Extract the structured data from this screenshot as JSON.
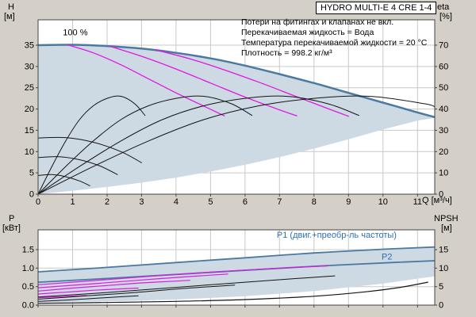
{
  "title": "HYDRO MULTI-E 4 CRE 1-4",
  "info_lines": [
    "Потери на фитингах и клапанах не вкл.",
    "Перекачиваемая жидкость = Вода",
    "Температура перекачиваемой жидкости = 20 °C",
    "Плотность = 998.2 кг/м³"
  ],
  "labels": {
    "h": "H",
    "h_unit": "[м]",
    "eta": "eta",
    "eta_unit": "[%]",
    "p": "P",
    "p_unit": "[кВт]",
    "npsh": "NPSH",
    "npsh_unit": "[м]",
    "q_axis": "Q [м³/ч]"
  },
  "colors": {
    "background": "#d4d0c8",
    "plot_bg": "#ffffff",
    "grid": "#c9c9c9",
    "frame": "#444444",
    "envelope": "#cdd9e3",
    "primary_curve": "#4a7aa2",
    "magenta_curve": "#e019e0",
    "black_curve": "#151515",
    "blue_text": "#2f6fb0",
    "text": "#000000"
  },
  "chart_data": [
    {
      "id": "hq",
      "type": "line",
      "title": "HYDRO MULTI-E 4 CRE 1-4",
      "xlabel": "Q [м³/ч]",
      "ylabel_left": "H [м]",
      "ylabel_right": "eta [%]",
      "xlim": [
        0,
        11.5
      ],
      "ylim_left": [
        0,
        41
      ],
      "ylim_right": [
        0,
        82
      ],
      "grid": true,
      "xticks": {
        "values": [
          0,
          1,
          2,
          3,
          4,
          5,
          6,
          7,
          8,
          9,
          10,
          11
        ],
        "labels": [
          "0",
          "1",
          "2",
          "3",
          "4",
          "5",
          "6",
          "7",
          "8",
          "9",
          "10",
          "11"
        ],
        "show_labels": true
      },
      "yticks_left": {
        "values": [
          0,
          5,
          10,
          15,
          20,
          25,
          30,
          35
        ],
        "labels": [
          "0",
          "5",
          "10",
          "15",
          "20",
          "25",
          "30",
          "35"
        ]
      },
      "yticks_right": {
        "values": [
          0,
          10,
          20,
          30,
          40,
          50,
          60,
          70
        ],
        "labels": [
          "0",
          "10",
          "20",
          "30",
          "40",
          "50",
          "60",
          "70"
        ]
      },
      "annotations": [
        {
          "text": "100 %",
          "x": 0.72,
          "y": 37.3,
          "color": "#000000"
        }
      ],
      "envelope": {
        "upper": [
          [
            0,
            35
          ],
          [
            1,
            35.1
          ],
          [
            2,
            34.8
          ],
          [
            3,
            34.2
          ],
          [
            4,
            33.2
          ],
          [
            5,
            31.9
          ],
          [
            6,
            30.2
          ],
          [
            7,
            28.2
          ],
          [
            8,
            26.1
          ],
          [
            9,
            23.8
          ],
          [
            10,
            21.5
          ],
          [
            11,
            19.2
          ],
          [
            11.5,
            18.1
          ]
        ],
        "lower": [
          [
            0,
            0
          ],
          [
            1,
            0.8
          ],
          [
            2,
            1.7
          ],
          [
            3,
            2.7
          ],
          [
            4,
            3.9
          ],
          [
            5,
            5.3
          ],
          [
            6,
            6.9
          ],
          [
            7,
            8.7
          ],
          [
            8,
            10.7
          ],
          [
            9,
            12.9
          ],
          [
            10,
            15.2
          ],
          [
            11,
            17.3
          ],
          [
            11.5,
            17.9
          ]
        ]
      },
      "series": [
        {
          "name": "max-speed-curve",
          "axis": "left",
          "color": "#4a7aa2",
          "width": 2.5,
          "points": [
            [
              0,
              35
            ],
            [
              1,
              35.1
            ],
            [
              2,
              34.8
            ],
            [
              3,
              34.2
            ],
            [
              4,
              33.2
            ],
            [
              5,
              31.9
            ],
            [
              6,
              30.2
            ],
            [
              7,
              28.2
            ],
            [
              8,
              26.1
            ],
            [
              9,
              23.8
            ],
            [
              10,
              21.5
            ],
            [
              11,
              19.2
            ],
            [
              11.5,
              18.1
            ]
          ]
        },
        {
          "name": "speed-curve-a",
          "axis": "left",
          "color": "#e019e0",
          "width": 1.3,
          "points": [
            [
              0.85,
              35.1
            ],
            [
              1.6,
              33.2
            ],
            [
              2.4,
              30.4
            ],
            [
              3.2,
              27.1
            ],
            [
              4,
              23.8
            ],
            [
              4.8,
              20.7
            ],
            [
              5.4,
              18.4
            ]
          ]
        },
        {
          "name": "speed-curve-b",
          "axis": "left",
          "color": "#e019e0",
          "width": 1.3,
          "points": [
            [
              2.1,
              34.7
            ],
            [
              3,
              32.4
            ],
            [
              4,
              29.4
            ],
            [
              5,
              26.1
            ],
            [
              6,
              22.8
            ],
            [
              7,
              19.8
            ],
            [
              7.5,
              18.4
            ]
          ]
        },
        {
          "name": "speed-curve-c",
          "axis": "left",
          "color": "#e019e0",
          "width": 1.3,
          "points": [
            [
              3.4,
              33.9
            ],
            [
              4.4,
              31.8
            ],
            [
              5.4,
              29.2
            ],
            [
              6.4,
              26.3
            ],
            [
              7.4,
              23.2
            ],
            [
              8.4,
              20.1
            ],
            [
              9,
              18.3
            ]
          ]
        },
        {
          "name": "eta-1-pump",
          "axis": "right",
          "color": "#151515",
          "width": 1,
          "points": [
            [
              0,
              0
            ],
            [
              0.4,
              13
            ],
            [
              0.8,
              25
            ],
            [
              1.2,
              35
            ],
            [
              1.6,
              41.5
            ],
            [
              2,
              45
            ],
            [
              2.4,
              46
            ],
            [
              2.8,
              42.5
            ],
            [
              3.1,
              37
            ]
          ]
        },
        {
          "name": "eta-2-pumps",
          "axis": "right",
          "color": "#151515",
          "width": 1,
          "points": [
            [
              0,
              0
            ],
            [
              0.8,
              13
            ],
            [
              1.6,
              25
            ],
            [
              2.4,
              35
            ],
            [
              3.2,
              41.5
            ],
            [
              4,
              45
            ],
            [
              4.8,
              46
            ],
            [
              5.6,
              42.5
            ],
            [
              6.2,
              37
            ]
          ]
        },
        {
          "name": "eta-3-pumps",
          "axis": "right",
          "color": "#151515",
          "width": 1,
          "points": [
            [
              0,
              0
            ],
            [
              1.2,
              13
            ],
            [
              2.4,
              25
            ],
            [
              3.6,
              35
            ],
            [
              4.8,
              41.5
            ],
            [
              6,
              45
            ],
            [
              7.2,
              46
            ],
            [
              8.4,
              42.5
            ],
            [
              9.3,
              37
            ]
          ]
        },
        {
          "name": "eta-4-pumps",
          "axis": "right",
          "color": "#151515",
          "width": 1,
          "points": [
            [
              0,
              0
            ],
            [
              1.6,
              13
            ],
            [
              3.2,
              25
            ],
            [
              4.8,
              35
            ],
            [
              6.4,
              41.5
            ],
            [
              8,
              45
            ],
            [
              9.6,
              46
            ],
            [
              11.2,
              42.5
            ],
            [
              11.5,
              41
            ]
          ]
        },
        {
          "name": "min-speed-arc-1",
          "axis": "left",
          "color": "#151515",
          "width": 1,
          "points": [
            [
              0,
              4.4
            ],
            [
              0.4,
              4.6
            ],
            [
              0.8,
              4.1
            ],
            [
              1.2,
              3.1
            ],
            [
              1.5,
              2
            ]
          ]
        },
        {
          "name": "min-speed-arc-2",
          "axis": "left",
          "color": "#151515",
          "width": 1,
          "points": [
            [
              0,
              8.6
            ],
            [
              0.6,
              8.8
            ],
            [
              1.2,
              8.1
            ],
            [
              1.8,
              6.6
            ],
            [
              2.3,
              4.6
            ]
          ]
        },
        {
          "name": "min-speed-arc-3",
          "axis": "left",
          "color": "#151515",
          "width": 1,
          "points": [
            [
              0,
              13.2
            ],
            [
              0.8,
              13.3
            ],
            [
              1.6,
              12.2
            ],
            [
              2.4,
              10
            ],
            [
              3,
              7.4
            ]
          ]
        }
      ]
    },
    {
      "id": "power",
      "type": "line",
      "title": "",
      "xlabel": "Q [м³/ч]",
      "ylabel_left": "P [кВт]",
      "ylabel_right": "NPSH [м]",
      "xlim": [
        0,
        11.5
      ],
      "ylim_left": [
        0,
        2.04
      ],
      "ylim_right": [
        0,
        20.4
      ],
      "grid": true,
      "xticks": {
        "values": [
          0,
          1,
          2,
          3,
          4,
          5,
          6,
          7,
          8,
          9,
          10,
          11
        ],
        "labels": [
          "0",
          "1",
          "2",
          "3",
          "4",
          "5",
          "6",
          "7",
          "8",
          "9",
          "10",
          "11"
        ],
        "show_labels": false
      },
      "yticks_left": {
        "values": [
          0,
          0.5,
          1,
          1.5
        ],
        "labels": [
          "0.0",
          "0.5",
          "1.0",
          "1.5"
        ]
      },
      "yticks_right": {
        "values": [
          0,
          5,
          10,
          15
        ],
        "labels": [
          "0",
          "5",
          "10",
          "15"
        ]
      },
      "annotations": [
        {
          "text": "P1 (двиг.+преобр-ль частоты)",
          "x": 6.92,
          "y": 1.82,
          "color": "#2f6fb0"
        },
        {
          "text": "P2",
          "x": 9.96,
          "y": 1.23,
          "color": "#2f6fb0"
        }
      ],
      "envelope": {
        "upper": [
          [
            0,
            0.9
          ],
          [
            2,
            1.02
          ],
          [
            4,
            1.15
          ],
          [
            6,
            1.28
          ],
          [
            8,
            1.41
          ],
          [
            10,
            1.51
          ],
          [
            11.5,
            1.57
          ]
        ],
        "lower": [
          [
            0,
            0.07
          ],
          [
            2,
            0.1
          ],
          [
            4,
            0.15
          ],
          [
            6,
            0.24
          ],
          [
            8,
            0.38
          ],
          [
            10,
            0.58
          ],
          [
            11.5,
            0.78
          ]
        ]
      },
      "series": [
        {
          "name": "p1-max-curve",
          "axis": "left",
          "color": "#4a7aa2",
          "width": 1.8,
          "points": [
            [
              0,
              0.9
            ],
            [
              2,
              1.02
            ],
            [
              4,
              1.15
            ],
            [
              6,
              1.28
            ],
            [
              8,
              1.41
            ],
            [
              10,
              1.51
            ],
            [
              11.5,
              1.57
            ]
          ]
        },
        {
          "name": "p2-curve",
          "axis": "left",
          "color": "#4a7aa2",
          "width": 1.8,
          "points": [
            [
              0,
              0.62
            ],
            [
              2,
              0.72
            ],
            [
              4,
              0.83
            ],
            [
              6,
              0.94
            ],
            [
              8,
              1.05
            ],
            [
              10,
              1.14
            ],
            [
              11.5,
              1.2
            ]
          ]
        },
        {
          "name": "power-magenta-1",
          "axis": "left",
          "color": "#e019e0",
          "width": 1.2,
          "points": [
            [
              0,
              0.2
            ],
            [
              0.7,
              0.23
            ],
            [
              1.4,
              0.26
            ]
          ]
        },
        {
          "name": "power-magenta-2",
          "axis": "left",
          "color": "#e019e0",
          "width": 1.2,
          "points": [
            [
              0,
              0.3
            ],
            [
              0.8,
              0.35
            ],
            [
              1.6,
              0.4
            ],
            [
              2.4,
              0.44
            ],
            [
              2.9,
              0.46
            ]
          ]
        },
        {
          "name": "power-magenta-3",
          "axis": "left",
          "color": "#e019e0",
          "width": 1.2,
          "points": [
            [
              0,
              0.38
            ],
            [
              1,
              0.46
            ],
            [
              2,
              0.53
            ],
            [
              3,
              0.6
            ],
            [
              4,
              0.65
            ],
            [
              4.4,
              0.67
            ]
          ]
        },
        {
          "name": "power-magenta-4",
          "axis": "left",
          "color": "#e019e0",
          "width": 1.2,
          "points": [
            [
              0,
              0.47
            ],
            [
              1.5,
              0.57
            ],
            [
              3,
              0.68
            ],
            [
              4.5,
              0.78
            ],
            [
              5.5,
              0.84
            ]
          ]
        },
        {
          "name": "power-magenta-5",
          "axis": "left",
          "color": "#e019e0",
          "width": 1.2,
          "points": [
            [
              0,
              0.55
            ],
            [
              2,
              0.69
            ],
            [
              4,
              0.83
            ],
            [
              6,
              0.95
            ],
            [
              7.5,
              1.02
            ],
            [
              8.4,
              1.06
            ]
          ]
        },
        {
          "name": "power-black-1",
          "axis": "left",
          "color": "#151515",
          "width": 1,
          "points": [
            [
              0,
              0.1
            ],
            [
              0.7,
              0.13
            ],
            [
              1.4,
              0.17
            ],
            [
              2.1,
              0.21
            ],
            [
              2.9,
              0.25
            ]
          ]
        },
        {
          "name": "power-black-2",
          "axis": "left",
          "color": "#151515",
          "width": 1,
          "points": [
            [
              0,
              0.16
            ],
            [
              1.4,
              0.25
            ],
            [
              2.8,
              0.34
            ],
            [
              4.2,
              0.45
            ],
            [
              5.7,
              0.54
            ]
          ]
        },
        {
          "name": "power-black-3",
          "axis": "left",
          "color": "#151515",
          "width": 1,
          "points": [
            [
              0,
              0.22
            ],
            [
              2,
              0.34
            ],
            [
              4,
              0.48
            ],
            [
              6,
              0.62
            ],
            [
              7.5,
              0.72
            ],
            [
              8.6,
              0.79
            ]
          ]
        },
        {
          "name": "npsh-curve",
          "axis": "right",
          "color": "#151515",
          "width": 1.2,
          "points": [
            [
              0,
              0.5
            ],
            [
              2,
              0.7
            ],
            [
              4,
              1
            ],
            [
              6,
              1.5
            ],
            [
              8,
              2.4
            ],
            [
              9.5,
              3.6
            ],
            [
              10.5,
              4.8
            ],
            [
              11.3,
              6.2
            ]
          ]
        }
      ]
    }
  ]
}
